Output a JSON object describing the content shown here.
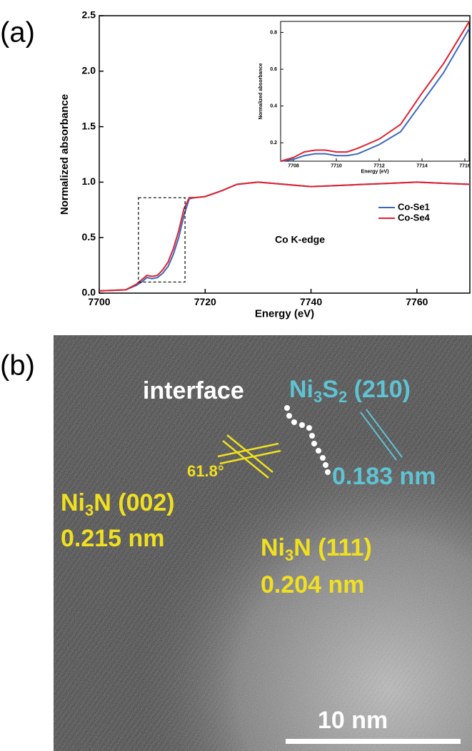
{
  "chart_data": [
    {
      "type": "line",
      "panel_label": "(a)",
      "x_label": "Energy (eV)",
      "y_label": "Normalized absorbance",
      "annotation": "Co K-edge",
      "x": [
        7700,
        7705,
        7707,
        7708,
        7709,
        7710,
        7711,
        7712,
        7713,
        7714,
        7715,
        7716,
        7717,
        7718,
        7720,
        7723,
        7726,
        7730,
        7735,
        7740,
        7745,
        7750,
        7755,
        7760,
        7765,
        7770
      ],
      "series": [
        {
          "name": "Co-Se1",
          "color": "#3a68c0",
          "values": [
            0.02,
            0.03,
            0.07,
            0.1,
            0.14,
            0.13,
            0.14,
            0.18,
            0.24,
            0.35,
            0.5,
            0.7,
            0.85,
            0.86,
            0.87,
            0.92,
            0.98,
            1.0,
            0.98,
            0.96,
            0.97,
            0.98,
            0.99,
            1.0,
            0.99,
            0.98
          ]
        },
        {
          "name": "Co-Se4",
          "color": "#e02030",
          "values": [
            0.02,
            0.03,
            0.08,
            0.12,
            0.16,
            0.15,
            0.16,
            0.21,
            0.28,
            0.4,
            0.56,
            0.76,
            0.86,
            0.86,
            0.87,
            0.92,
            0.98,
            1.0,
            0.98,
            0.96,
            0.97,
            0.98,
            0.99,
            1.0,
            0.99,
            0.98
          ]
        }
      ],
      "xlim": [
        7700,
        7770
      ],
      "xticks": [
        7700,
        7720,
        7740,
        7760
      ],
      "ylim": [
        0,
        2.5
      ],
      "yticks": [
        {
          "value": 0,
          "label": "0.0"
        },
        0.5,
        {
          "value": 1,
          "label": "1.0"
        },
        1.5,
        {
          "value": 2,
          "label": "2.0"
        },
        2.5
      ],
      "legend": "right"
    },
    {
      "type": "line",
      "x_label": "Energy (eV)",
      "y_label": "Normalized absorbance",
      "x": [
        7707.4,
        7708,
        7708.5,
        7709,
        7709.5,
        7710,
        7710.5,
        7711,
        7712,
        7713,
        7714,
        7715,
        7716,
        7716.2
      ],
      "series": [
        {
          "name": "Co-Se1",
          "color": "#3a68c0",
          "values": [
            0.1,
            0.11,
            0.13,
            0.14,
            0.14,
            0.13,
            0.13,
            0.14,
            0.19,
            0.26,
            0.42,
            0.58,
            0.78,
            0.82
          ]
        },
        {
          "name": "Co-Se4",
          "color": "#e02030",
          "values": [
            0.1,
            0.12,
            0.15,
            0.16,
            0.16,
            0.15,
            0.15,
            0.17,
            0.22,
            0.3,
            0.47,
            0.63,
            0.82,
            0.86
          ]
        }
      ],
      "xlim": [
        7707.4,
        7716.2
      ],
      "xticks": [
        7708,
        7710,
        7712,
        7714,
        7716
      ],
      "ylim": [
        0.1,
        0.86
      ],
      "yticks": [
        0.2,
        0.4,
        0.6,
        0.8
      ]
    }
  ],
  "image": {
    "panel_label": "(b)",
    "interface": "interface",
    "ni3s2": {
      "parts": [
        "Ni",
        "3",
        "S",
        "2",
        " (210)"
      ],
      "spacing": "0.183 nm"
    },
    "angle": "61.8°",
    "ni3n_002": {
      "parts": [
        "Ni",
        "3",
        "N (002)"
      ],
      "spacing": "0.215 nm"
    },
    "ni3n_111": {
      "parts": [
        "Ni",
        "3",
        "N (111)"
      ],
      "spacing": "0.204 nm"
    },
    "scale_bar": "10 nm"
  }
}
